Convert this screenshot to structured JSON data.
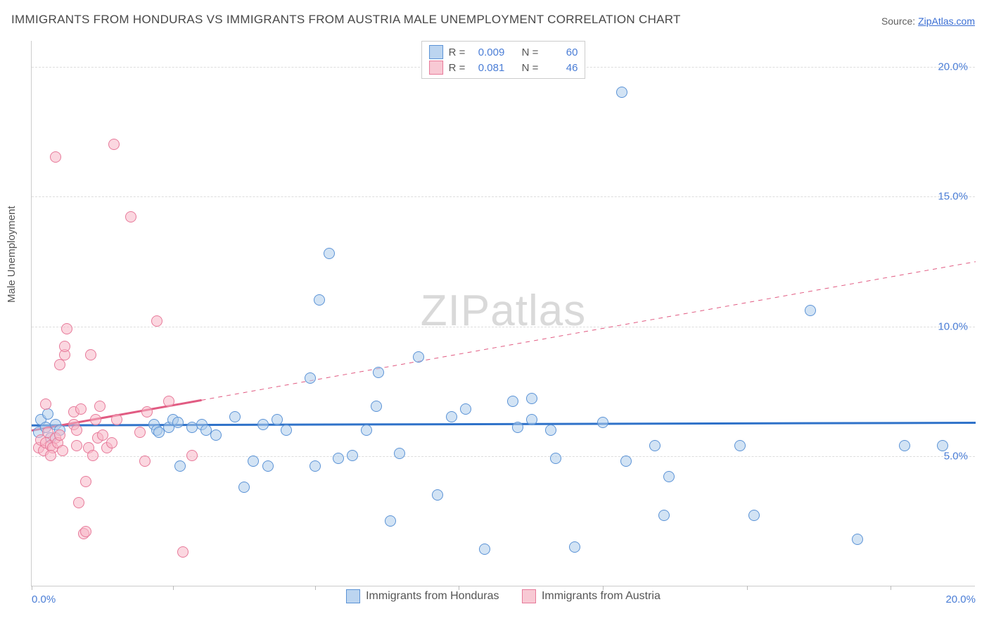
{
  "title": "IMMIGRANTS FROM HONDURAS VS IMMIGRANTS FROM AUSTRIA MALE UNEMPLOYMENT CORRELATION CHART",
  "source": {
    "label": "Source: ",
    "link_text": "ZipAtlas.com"
  },
  "watermark": {
    "zip": "ZIP",
    "atlas": "atlas"
  },
  "ylabel": "Male Unemployment",
  "top_legend": {
    "rows": [
      {
        "swatch_fill": "#bcd5f0",
        "swatch_border": "#5b93d6",
        "r": "0.009",
        "n": "60"
      },
      {
        "swatch_fill": "#f8c9d4",
        "swatch_border": "#e77a9a",
        "r": "0.081",
        "n": "46"
      }
    ],
    "r_label": "R =",
    "n_label": "N ="
  },
  "bottom_legend": {
    "items": [
      {
        "swatch_fill": "#bcd5f0",
        "swatch_border": "#5b93d6",
        "label": "Immigrants from Honduras"
      },
      {
        "swatch_fill": "#f8c9d4",
        "swatch_border": "#e77a9a",
        "label": "Immigrants from Austria"
      }
    ]
  },
  "chart": {
    "xlim": [
      0,
      20
    ],
    "ylim": [
      0,
      21
    ],
    "gridlines_y": [
      5,
      10,
      15,
      20
    ],
    "y_tick_labels": [
      "5.0%",
      "10.0%",
      "15.0%",
      "20.0%"
    ],
    "x_ticks_at": [
      0,
      3.0,
      6.0,
      9.05,
      12.1,
      15.15,
      18.2
    ],
    "x_tick_labels": {
      "0": "0.0%",
      "20": "20.0%"
    },
    "background_color": "#ffffff",
    "grid_color": "#dddddd",
    "marker_radius": 8,
    "marker_border_width": 1.2,
    "series": [
      {
        "name": "honduras",
        "fill": "rgba(173,204,235,0.55)",
        "border": "#5b93d6",
        "trend": {
          "color": "#2f72c9",
          "width": 3,
          "x0": 0,
          "y0": 6.2,
          "x1": 20,
          "y1": 6.3,
          "dash_from_x": null
        },
        "points": [
          [
            0.15,
            5.9
          ],
          [
            0.2,
            6.4
          ],
          [
            0.3,
            6.1
          ],
          [
            0.35,
            6.6
          ],
          [
            0.4,
            5.7
          ],
          [
            0.5,
            6.2
          ],
          [
            0.6,
            6.0
          ],
          [
            2.6,
            6.2
          ],
          [
            2.65,
            6.0
          ],
          [
            2.7,
            5.9
          ],
          [
            2.9,
            6.1
          ],
          [
            3.0,
            6.4
          ],
          [
            3.1,
            6.3
          ],
          [
            3.15,
            4.6
          ],
          [
            3.4,
            6.1
          ],
          [
            3.6,
            6.2
          ],
          [
            3.7,
            6.0
          ],
          [
            3.9,
            5.8
          ],
          [
            4.3,
            6.5
          ],
          [
            4.5,
            3.8
          ],
          [
            4.7,
            4.8
          ],
          [
            4.9,
            6.2
          ],
          [
            5.0,
            4.6
          ],
          [
            5.2,
            6.4
          ],
          [
            5.4,
            6.0
          ],
          [
            5.9,
            8.0
          ],
          [
            6.0,
            4.6
          ],
          [
            6.1,
            11.0
          ],
          [
            6.3,
            12.8
          ],
          [
            6.5,
            4.9
          ],
          [
            6.8,
            5.0
          ],
          [
            7.1,
            6.0
          ],
          [
            7.3,
            6.9
          ],
          [
            7.35,
            8.2
          ],
          [
            7.6,
            2.5
          ],
          [
            7.8,
            5.1
          ],
          [
            8.2,
            8.8
          ],
          [
            8.6,
            3.5
          ],
          [
            8.9,
            6.5
          ],
          [
            9.2,
            6.8
          ],
          [
            9.6,
            1.4
          ],
          [
            10.2,
            7.1
          ],
          [
            10.3,
            6.1
          ],
          [
            10.6,
            6.4
          ],
          [
            10.6,
            7.2
          ],
          [
            11.0,
            6.0
          ],
          [
            11.1,
            4.9
          ],
          [
            11.5,
            1.5
          ],
          [
            12.1,
            6.3
          ],
          [
            12.5,
            19.0
          ],
          [
            12.6,
            4.8
          ],
          [
            13.2,
            5.4
          ],
          [
            13.4,
            2.7
          ],
          [
            13.5,
            4.2
          ],
          [
            15.0,
            5.4
          ],
          [
            15.3,
            2.7
          ],
          [
            16.5,
            10.6
          ],
          [
            17.5,
            1.8
          ],
          [
            18.5,
            5.4
          ],
          [
            19.3,
            5.4
          ]
        ]
      },
      {
        "name": "austria",
        "fill": "rgba(248,182,199,0.55)",
        "border": "#e77a9a",
        "trend": {
          "color": "#e15b82",
          "width": 2,
          "x0": 0,
          "y0": 6.0,
          "x1": 20,
          "y1": 12.5,
          "dash_from_x": 3.6
        },
        "points": [
          [
            0.15,
            5.3
          ],
          [
            0.2,
            5.6
          ],
          [
            0.25,
            5.2
          ],
          [
            0.3,
            5.5
          ],
          [
            0.35,
            5.9
          ],
          [
            0.4,
            5.4
          ],
          [
            0.3,
            7.0
          ],
          [
            0.45,
            5.3
          ],
          [
            0.5,
            5.7
          ],
          [
            0.55,
            5.5
          ],
          [
            0.6,
            5.8
          ],
          [
            0.65,
            5.2
          ],
          [
            0.4,
            5.0
          ],
          [
            0.6,
            8.5
          ],
          [
            0.7,
            8.9
          ],
          [
            0.75,
            9.9
          ],
          [
            0.7,
            9.2
          ],
          [
            0.5,
            16.5
          ],
          [
            0.9,
            6.7
          ],
          [
            0.9,
            6.2
          ],
          [
            0.95,
            6.0
          ],
          [
            0.95,
            5.4
          ],
          [
            1.0,
            3.2
          ],
          [
            1.05,
            6.8
          ],
          [
            1.1,
            2.0
          ],
          [
            1.15,
            2.1
          ],
          [
            1.15,
            4.0
          ],
          [
            1.2,
            5.3
          ],
          [
            1.25,
            8.9
          ],
          [
            1.3,
            5.0
          ],
          [
            1.35,
            6.4
          ],
          [
            1.4,
            5.7
          ],
          [
            1.45,
            6.9
          ],
          [
            1.5,
            5.8
          ],
          [
            1.6,
            5.3
          ],
          [
            1.7,
            5.5
          ],
          [
            1.75,
            17.0
          ],
          [
            1.8,
            6.4
          ],
          [
            2.1,
            14.2
          ],
          [
            2.3,
            5.9
          ],
          [
            2.4,
            4.8
          ],
          [
            2.45,
            6.7
          ],
          [
            2.65,
            10.2
          ],
          [
            2.9,
            7.1
          ],
          [
            3.2,
            1.3
          ],
          [
            3.4,
            5.0
          ]
        ]
      }
    ]
  }
}
